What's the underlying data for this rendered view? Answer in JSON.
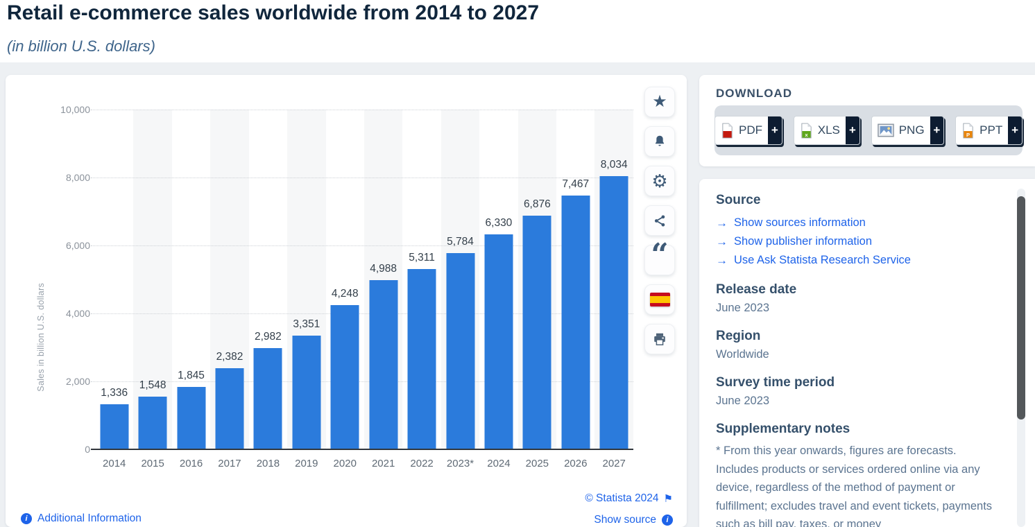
{
  "page": {
    "title": "Retail e-commerce sales worldwide from 2014 to 2027",
    "subtitle": "(in billion U.S. dollars)"
  },
  "chart_data": {
    "type": "bar",
    "title": "Retail e-commerce sales worldwide from 2014 to 2027",
    "subtitle": "(in billion U.S. dollars)",
    "categories": [
      "2014",
      "2015",
      "2016",
      "2017",
      "2018",
      "2019",
      "2020",
      "2021",
      "2022",
      "2023*",
      "2024",
      "2025",
      "2026",
      "2027"
    ],
    "values": [
      1336,
      1548,
      1845,
      2382,
      2982,
      3351,
      4248,
      4988,
      5311,
      5784,
      6330,
      6876,
      7467,
      8034
    ],
    "value_labels": [
      "1,336",
      "1,548",
      "1,845",
      "2,382",
      "2,982",
      "3,351",
      "4,248",
      "4,988",
      "5,311",
      "5,784",
      "6,330",
      "6,876",
      "7,467",
      "8,034"
    ],
    "xlabel": "",
    "ylabel": "Sales in billion U.S. dollars",
    "ylim": [
      0,
      10000
    ],
    "ytick_step": 2000,
    "yticks": [
      "10,000",
      "8,000",
      "6,000",
      "4,000",
      "2,000",
      "0"
    ],
    "grid": "horizontal-dotted",
    "legend": "none",
    "bar_color": "#2b7bdc",
    "band_color": "#f6f7f8"
  },
  "toolbar": {
    "icons": [
      "star-icon",
      "bell-icon",
      "gear-icon",
      "share-icon",
      "quote-icon",
      "spanish-flag-icon",
      "print-icon"
    ],
    "star_glyph": "★",
    "gear_glyph": "⚙",
    "quote_glyph": "“"
  },
  "download": {
    "label": "DOWNLOAD",
    "plus": "+",
    "buttons": [
      {
        "label": "PDF",
        "icon": "pdf-file-icon",
        "color": "#c41a0f"
      },
      {
        "label": "XLS",
        "icon": "xls-file-icon",
        "color": "#5fa71c"
      },
      {
        "label": "PNG",
        "icon": "png-image-icon",
        "color": "#6f96c8"
      },
      {
        "label": "PPT",
        "icon": "ppt-file-icon",
        "color": "#e8850c"
      }
    ]
  },
  "info_panel": {
    "source": {
      "heading": "Source",
      "links": [
        "Show sources information",
        "Show publisher information",
        "Use Ask Statista Research Service"
      ]
    },
    "release_date": {
      "heading": "Release date",
      "value": "June 2023"
    },
    "region": {
      "heading": "Region",
      "value": "Worldwide"
    },
    "survey_time_period": {
      "heading": "Survey time period",
      "value": "June 2023"
    },
    "supplementary_notes": {
      "heading": "Supplementary notes",
      "text": "* From this year onwards, figures are forecasts. Includes products or services ordered online via any device, regardless of the method of payment or fulfillment; excludes travel and event tickets, payments such as bill pay, taxes, or money"
    }
  },
  "footer": {
    "additional_information": "Additional Information",
    "copyright": "© Statista 2024",
    "show_source": "Show source",
    "info_glyph": "i",
    "flag_glyph": "⚑"
  }
}
